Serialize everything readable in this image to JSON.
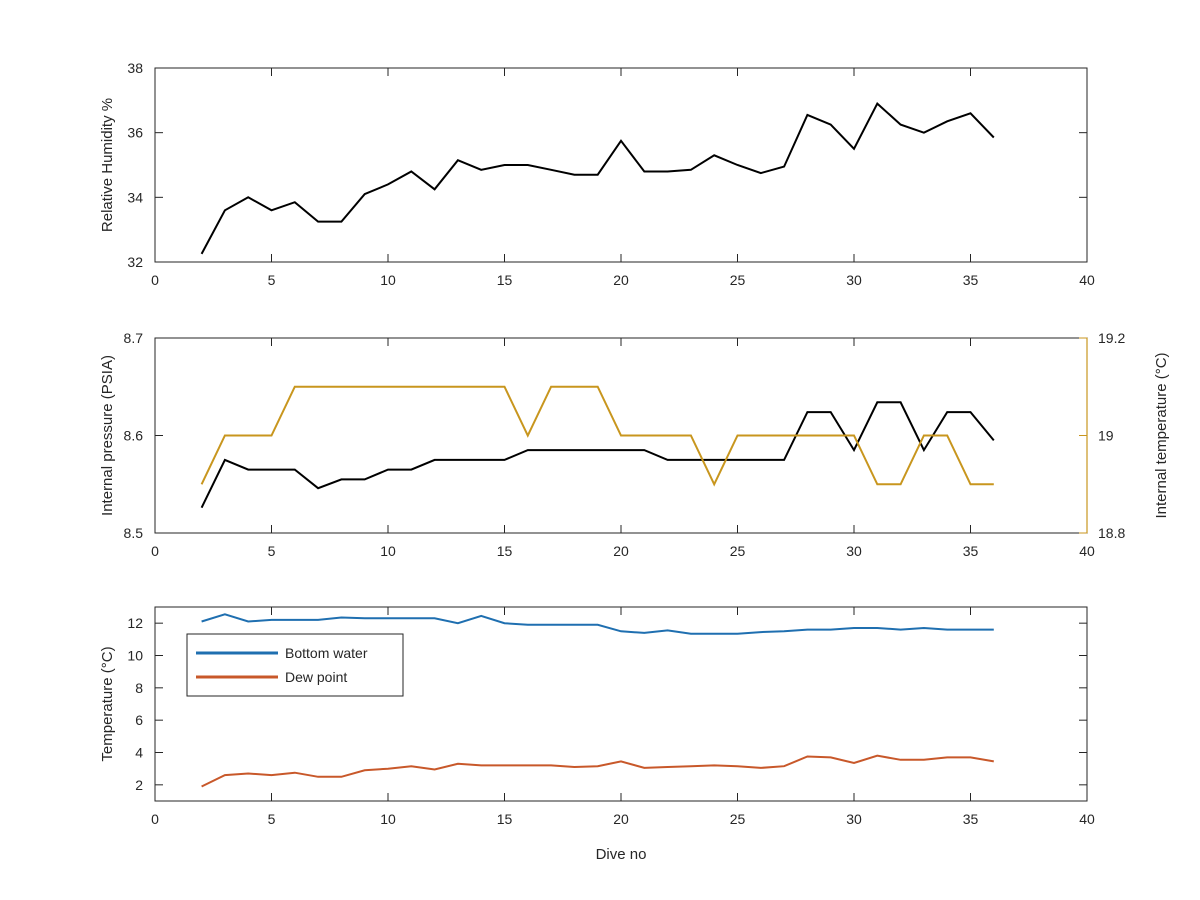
{
  "colors": {
    "black": "#000000",
    "gold": "#c8961e",
    "blue": "#1f6fb0",
    "orange": "#c8582a",
    "axis": "#262626"
  },
  "chart_data": [
    {
      "type": "line",
      "title": "",
      "xlabel": "",
      "ylabel": "Relative Humidity %",
      "xlim": [
        0,
        40
      ],
      "ylim": [
        32,
        38
      ],
      "xticks": [
        0,
        5,
        10,
        15,
        20,
        25,
        30,
        35,
        40
      ],
      "yticks": [
        32,
        34,
        36,
        38
      ],
      "grid": false,
      "x": [
        2,
        3,
        4,
        5,
        6,
        7,
        8,
        9,
        10,
        11,
        12,
        13,
        14,
        15,
        16,
        17,
        18,
        19,
        20,
        21,
        22,
        23,
        24,
        25,
        26,
        27,
        28,
        29,
        30,
        31,
        32,
        33,
        34,
        35,
        36
      ],
      "series": [
        {
          "color": "#000000",
          "values": [
            32.25,
            33.6,
            34.0,
            33.6,
            33.85,
            33.25,
            33.25,
            34.1,
            34.4,
            34.8,
            34.25,
            35.15,
            34.85,
            35.0,
            35.0,
            34.85,
            34.7,
            34.7,
            35.75,
            34.8,
            34.8,
            34.85,
            35.3,
            35.0,
            34.75,
            34.95,
            36.55,
            36.25,
            35.5,
            36.9,
            36.25,
            36.0,
            36.35,
            36.6,
            35.85
          ]
        }
      ]
    },
    {
      "type": "line",
      "title": "",
      "xlabel": "",
      "ylabel": "Internal pressure (PSIA)",
      "ylabel_right": "Internal temperature (°C)",
      "xlim": [
        0,
        40
      ],
      "ylim": [
        8.5,
        8.7
      ],
      "ylim_right": [
        18.8,
        19.2
      ],
      "xticks": [
        0,
        5,
        10,
        15,
        20,
        25,
        30,
        35,
        40
      ],
      "yticks": [
        8.5,
        8.6,
        8.7
      ],
      "yticks_right": [
        18.8,
        19,
        19.2
      ],
      "grid": false,
      "x": [
        2,
        3,
        4,
        5,
        6,
        7,
        8,
        9,
        10,
        11,
        12,
        13,
        14,
        15,
        16,
        17,
        18,
        19,
        20,
        21,
        22,
        23,
        24,
        25,
        26,
        27,
        28,
        29,
        30,
        31,
        32,
        33,
        34,
        35,
        36
      ],
      "series": [
        {
          "axis": "left",
          "color": "#000000",
          "values": [
            8.526,
            8.575,
            8.565,
            8.565,
            8.565,
            8.546,
            8.555,
            8.555,
            8.565,
            8.565,
            8.575,
            8.575,
            8.575,
            8.575,
            8.585,
            8.585,
            8.585,
            8.585,
            8.585,
            8.585,
            8.575,
            8.575,
            8.575,
            8.575,
            8.575,
            8.575,
            8.624,
            8.624,
            8.585,
            8.634,
            8.634,
            8.585,
            8.624,
            8.624,
            8.595
          ]
        },
        {
          "axis": "right",
          "color": "#c8961e",
          "values": [
            18.9,
            19.0,
            19.0,
            19.0,
            19.1,
            19.1,
            19.1,
            19.1,
            19.1,
            19.1,
            19.1,
            19.1,
            19.1,
            19.1,
            19.0,
            19.1,
            19.1,
            19.1,
            19.0,
            19.0,
            19.0,
            19.0,
            18.9,
            19.0,
            19.0,
            19.0,
            19.0,
            19.0,
            19.0,
            18.9,
            18.9,
            19.0,
            19.0,
            18.9,
            18.9
          ]
        }
      ]
    },
    {
      "type": "line",
      "title": "",
      "xlabel": "Dive no",
      "ylabel": "Temperature (°C)",
      "xlim": [
        0,
        40
      ],
      "ylim": [
        1,
        13
      ],
      "xticks": [
        0,
        5,
        10,
        15,
        20,
        25,
        30,
        35,
        40
      ],
      "yticks": [
        2,
        4,
        6,
        8,
        10,
        12
      ],
      "grid": false,
      "legend": "top-left",
      "x": [
        2,
        3,
        4,
        5,
        6,
        7,
        8,
        9,
        10,
        11,
        12,
        13,
        14,
        15,
        16,
        17,
        18,
        19,
        20,
        21,
        22,
        23,
        24,
        25,
        26,
        27,
        28,
        29,
        30,
        31,
        32,
        33,
        34,
        35,
        36
      ],
      "series": [
        {
          "name": "Bottom water",
          "color": "#1f6fb0",
          "values": [
            12.1,
            12.55,
            12.1,
            12.2,
            12.2,
            12.2,
            12.35,
            12.3,
            12.3,
            12.3,
            12.3,
            12.0,
            12.45,
            12.0,
            11.9,
            11.9,
            11.9,
            11.9,
            11.5,
            11.4,
            11.55,
            11.35,
            11.35,
            11.35,
            11.45,
            11.5,
            11.6,
            11.6,
            11.7,
            11.7,
            11.6,
            11.7,
            11.6,
            11.6,
            11.6
          ]
        },
        {
          "name": "Dew point",
          "color": "#c8582a",
          "values": [
            1.9,
            2.6,
            2.7,
            2.6,
            2.75,
            2.5,
            2.5,
            2.9,
            3.0,
            3.15,
            2.95,
            3.3,
            3.2,
            3.2,
            3.2,
            3.2,
            3.1,
            3.15,
            3.45,
            3.05,
            3.1,
            3.15,
            3.2,
            3.15,
            3.05,
            3.15,
            3.75,
            3.7,
            3.35,
            3.8,
            3.55,
            3.55,
            3.7,
            3.7,
            3.45
          ]
        }
      ]
    }
  ]
}
